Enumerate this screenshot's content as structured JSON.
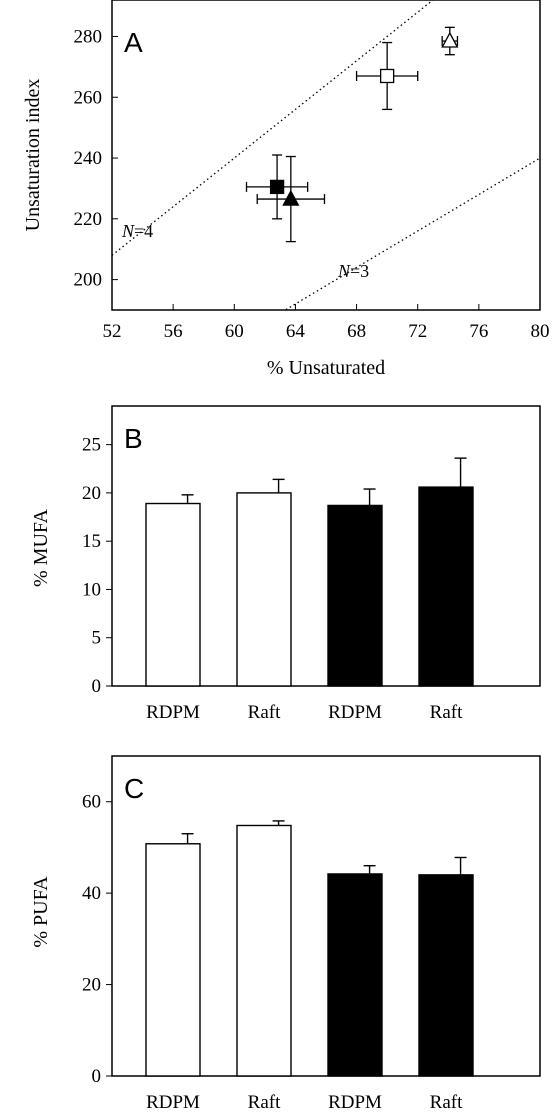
{
  "chart_data": [
    {
      "type": "scatter",
      "panel_label": "A",
      "xlabel": "% Unsaturated",
      "ylabel": "Unsaturation index",
      "xlim": [
        52,
        80
      ],
      "ylim": [
        190,
        292
      ],
      "xticks": [
        52,
        56,
        60,
        64,
        68,
        72,
        76,
        80
      ],
      "yticks": [
        200,
        220,
        240,
        260,
        280
      ],
      "points": [
        {
          "marker": "filled-square",
          "x": 62.8,
          "y": 230.5,
          "xerr": 2.0,
          "yerr": 10.5
        },
        {
          "marker": "filled-triangle",
          "x": 63.7,
          "y": 226.5,
          "xerr": 2.2,
          "yerr": 14.0
        },
        {
          "marker": "open-square",
          "x": 70.0,
          "y": 267.0,
          "xerr": 2.0,
          "yerr": 11.0
        },
        {
          "marker": "open-triangle",
          "x": 74.1,
          "y": 278.5,
          "xerr": 0.5,
          "yerr": 4.5
        }
      ],
      "reference_lines": [
        {
          "name": "N=4",
          "prefix": "N",
          "suffix": "=4",
          "slope": 4
        },
        {
          "name": "N=3",
          "prefix": "N",
          "suffix": "=3",
          "slope": 3
        }
      ]
    },
    {
      "type": "bar",
      "panel_label": "B",
      "ylabel": "% MUFA",
      "ylim": [
        0,
        29
      ],
      "yticks": [
        0,
        5,
        10,
        15,
        20,
        25
      ],
      "categories": [
        "RDPM",
        "Raft",
        "RDPM",
        "Raft"
      ],
      "values": [
        18.9,
        20.0,
        18.7,
        20.6
      ],
      "errors": [
        0.9,
        1.4,
        1.7,
        3.0
      ],
      "fills": [
        "open",
        "open",
        "filled",
        "filled"
      ]
    },
    {
      "type": "bar",
      "panel_label": "C",
      "ylabel": "% PUFA",
      "ylim": [
        0,
        70
      ],
      "yticks": [
        0,
        20,
        40,
        60
      ],
      "categories": [
        "RDPM",
        "Raft",
        "RDPM",
        "Raft"
      ],
      "values": [
        50.8,
        54.8,
        44.2,
        44.0
      ],
      "errors": [
        2.2,
        1.0,
        1.8,
        3.8
      ],
      "fills": [
        "open",
        "open",
        "filled",
        "filled"
      ]
    }
  ],
  "colors": {
    "open": "#ffffff",
    "filled": "#000000",
    "stroke": "#000000"
  }
}
